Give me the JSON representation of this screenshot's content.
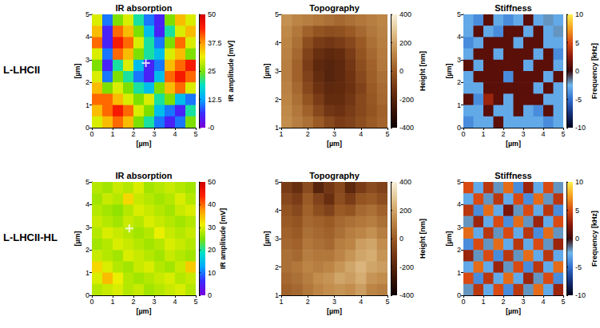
{
  "chart_data": [
    {
      "type": "heatmap",
      "row_label": "L-LHCII",
      "title": "IR absorption",
      "x_label": "[µm]",
      "y_label": "[µm]",
      "xlim": [
        0,
        5
      ],
      "ylim": [
        0,
        5
      ],
      "xticks": [
        0,
        1,
        2,
        3,
        4,
        5
      ],
      "yticks": [
        0,
        1,
        2,
        3,
        4,
        5
      ],
      "cells": [
        [
          30,
          10,
          25,
          30,
          20,
          10,
          5,
          25,
          35,
          30
        ],
        [
          35,
          5,
          40,
          35,
          25,
          15,
          5,
          20,
          30,
          35
        ],
        [
          40,
          5,
          45,
          40,
          30,
          20,
          10,
          25,
          40,
          30
        ],
        [
          30,
          10,
          40,
          35,
          25,
          20,
          15,
          30,
          35,
          25
        ],
        [
          25,
          5,
          20,
          30,
          15,
          5,
          10,
          35,
          40,
          45
        ],
        [
          30,
          10,
          25,
          20,
          10,
          5,
          15,
          40,
          45,
          40
        ],
        [
          35,
          25,
          30,
          25,
          20,
          15,
          25,
          35,
          40,
          30
        ],
        [
          40,
          40,
          35,
          30,
          25,
          30,
          20,
          25,
          15,
          10
        ],
        [
          35,
          40,
          45,
          40,
          30,
          25,
          15,
          10,
          5,
          20
        ],
        [
          30,
          35,
          40,
          35,
          25,
          20,
          10,
          5,
          10,
          25
        ]
      ],
      "colorbar": {
        "label": "IR amplitude [mV]",
        "range": [
          0,
          50
        ],
        "ticks": [
          {
            "value": 0,
            "label": "-0"
          },
          12.5,
          25,
          37.5,
          50
        ]
      },
      "markers": [
        {
          "x": 2.6,
          "y": 2.85
        }
      ],
      "marker": "cross"
    },
    {
      "type": "heatmap",
      "title": "Topography",
      "x_label": "[µm]",
      "y_label": "[µm]",
      "xlim": [
        1,
        5
      ],
      "ylim": [
        1,
        5
      ],
      "xticks": [
        1,
        2,
        3,
        4,
        5
      ],
      "yticks": [
        1,
        2,
        3,
        4,
        5
      ],
      "cells": [
        [
          150,
          120,
          100,
          80,
          60,
          40,
          60,
          80,
          100,
          120
        ],
        [
          130,
          80,
          20,
          -20,
          -40,
          -30,
          0,
          40,
          80,
          110
        ],
        [
          120,
          60,
          -40,
          -100,
          -120,
          -100,
          -60,
          0,
          60,
          100
        ],
        [
          110,
          40,
          -80,
          -150,
          -180,
          -160,
          -100,
          -20,
          40,
          90
        ],
        [
          100,
          20,
          -100,
          -180,
          -200,
          -180,
          -120,
          -40,
          20,
          80
        ],
        [
          100,
          20,
          -80,
          -160,
          -200,
          -180,
          -130,
          -60,
          10,
          60
        ],
        [
          110,
          40,
          -60,
          -140,
          -180,
          -170,
          -140,
          -80,
          0,
          50
        ],
        [
          120,
          60,
          -20,
          -100,
          -160,
          -160,
          -120,
          -60,
          -10,
          40
        ],
        [
          130,
          80,
          20,
          -60,
          -120,
          -140,
          -100,
          -60,
          -20,
          20
        ],
        [
          140,
          100,
          60,
          0,
          -60,
          -100,
          -80,
          -40,
          0,
          30
        ]
      ],
      "colorbar": {
        "label": "Height [nm]",
        "range": [
          -400,
          400
        ],
        "ticks": [
          -400,
          -200,
          0,
          200,
          400
        ]
      }
    },
    {
      "type": "heatmap",
      "title": "Stiffness",
      "x_label": "[µm]",
      "y_label": "[µm]",
      "xlim": [
        0,
        5
      ],
      "ylim": [
        0,
        5
      ],
      "xticks": [
        0,
        1,
        2,
        3,
        4,
        5
      ],
      "yticks": [
        0,
        1,
        2,
        3,
        4,
        5
      ],
      "cells": [
        [
          -3,
          -4,
          1,
          -3,
          -4,
          -3,
          1,
          -3,
          -2,
          -3
        ],
        [
          -3,
          1,
          -3,
          -4,
          1,
          1,
          -3,
          1,
          -3,
          -2
        ],
        [
          -4,
          -3,
          1,
          1,
          1,
          -3,
          1,
          1,
          -3,
          -3
        ],
        [
          -3,
          1,
          1,
          -3,
          1,
          1,
          1,
          -3,
          1,
          -4
        ],
        [
          1,
          -3,
          1,
          1,
          1,
          1,
          -3,
          1,
          1,
          -3
        ],
        [
          -3,
          1,
          1,
          1,
          -4,
          1,
          1,
          1,
          -3,
          1
        ],
        [
          -3,
          -3,
          1,
          1,
          1,
          1,
          1,
          -3,
          1,
          -3
        ],
        [
          1,
          -4,
          3,
          1,
          -3,
          1,
          1,
          1,
          -3,
          -3
        ],
        [
          -3,
          -3,
          1,
          -3,
          -3,
          1,
          -3,
          -4,
          1,
          -3
        ],
        [
          -4,
          -3,
          -3,
          1,
          -3,
          -3,
          -3,
          -3,
          -4,
          -3
        ]
      ],
      "colorbar": {
        "label": "Frequency [kHz]",
        "range": [
          -10,
          10
        ],
        "ticks": [
          -10,
          -5,
          0,
          5,
          10
        ]
      }
    },
    {
      "type": "heatmap",
      "row_label": "L-LHCII-HL",
      "title": "IR absorption",
      "x_label": "[µm]",
      "y_label": "[µm]",
      "xlim": [
        0,
        5
      ],
      "ylim": [
        0,
        5
      ],
      "xticks": [
        0,
        1,
        2,
        3,
        4,
        5
      ],
      "yticks": [
        0,
        1,
        2,
        3,
        4,
        5
      ],
      "cells": [
        [
          28,
          27,
          29,
          28,
          30,
          27,
          28,
          29,
          28,
          27
        ],
        [
          27,
          29,
          28,
          33,
          29,
          28,
          27,
          28,
          30,
          28
        ],
        [
          28,
          27,
          26,
          28,
          30,
          29,
          28,
          27,
          29,
          30
        ],
        [
          29,
          28,
          27,
          29,
          28,
          30,
          29,
          28,
          27,
          28
        ],
        [
          28,
          30,
          29,
          28,
          27,
          28,
          31,
          29,
          28,
          29
        ],
        [
          27,
          28,
          30,
          29,
          28,
          27,
          28,
          30,
          29,
          28
        ],
        [
          29,
          28,
          27,
          30,
          29,
          28,
          27,
          29,
          28,
          27
        ],
        [
          33,
          30,
          28,
          27,
          29,
          30,
          28,
          27,
          29,
          34
        ],
        [
          30,
          35,
          31,
          28,
          27,
          28,
          29,
          30,
          28,
          29
        ],
        [
          28,
          29,
          30,
          28,
          29,
          27,
          28,
          29,
          30,
          28
        ]
      ],
      "colorbar": {
        "label": "IR amplitude [mV]",
        "range": [
          0,
          50
        ],
        "ticks": [
          0,
          10,
          20,
          30,
          40,
          50
        ]
      },
      "markers": [
        {
          "x": 1.8,
          "y": 2.95
        }
      ],
      "marker": "cross"
    },
    {
      "type": "heatmap",
      "title": "Topography",
      "x_label": "[µm]",
      "y_label": "[µm]",
      "xlim": [
        1,
        5
      ],
      "ylim": [
        1,
        5
      ],
      "xticks": [
        1,
        2,
        3,
        4,
        5
      ],
      "yticks": [
        1,
        2,
        3,
        4,
        5
      ],
      "cells": [
        [
          -100,
          -150,
          -50,
          -200,
          -120,
          -60,
          -180,
          -100,
          -50,
          -80
        ],
        [
          -60,
          -100,
          0,
          -80,
          -150,
          -40,
          -100,
          -20,
          0,
          -40
        ],
        [
          -20,
          -60,
          20,
          -40,
          -80,
          0,
          -20,
          40,
          60,
          20
        ],
        [
          0,
          -20,
          40,
          20,
          0,
          40,
          60,
          80,
          100,
          60
        ],
        [
          20,
          0,
          60,
          40,
          20,
          60,
          100,
          120,
          150,
          100
        ],
        [
          40,
          20,
          80,
          60,
          40,
          100,
          120,
          180,
          200,
          140
        ],
        [
          60,
          40,
          100,
          80,
          80,
          120,
          160,
          200,
          220,
          160
        ],
        [
          60,
          80,
          120,
          100,
          120,
          160,
          200,
          240,
          200,
          180
        ],
        [
          40,
          60,
          100,
          140,
          160,
          200,
          180,
          220,
          160,
          140
        ],
        [
          20,
          40,
          80,
          120,
          140,
          160,
          140,
          180,
          120,
          100
        ]
      ],
      "colorbar": {
        "label": "Height [nm]",
        "range": [
          -400,
          400
        ],
        "ticks": [
          -400,
          -200,
          0,
          200,
          400
        ]
      }
    },
    {
      "type": "heatmap",
      "title": "Stiffness",
      "x_label": "[µm]",
      "y_label": "[µm]",
      "xlim": [
        0,
        5
      ],
      "ylim": [
        0,
        5
      ],
      "xticks": [
        0,
        1,
        2,
        3,
        4,
        5
      ],
      "yticks": [
        0,
        1,
        2,
        3,
        4,
        5
      ],
      "cells": [
        [
          5,
          -3,
          4,
          -2,
          6,
          -4,
          3,
          -3,
          5,
          -2
        ],
        [
          -3,
          5,
          -2,
          4,
          -3,
          5,
          -4,
          6,
          -2,
          4
        ],
        [
          4,
          -4,
          6,
          -3,
          2,
          -2,
          5,
          -3,
          4,
          -4
        ],
        [
          -2,
          3,
          -3,
          5,
          -4,
          6,
          -2,
          3,
          -3,
          5
        ],
        [
          6,
          -3,
          4,
          -2,
          5,
          -3,
          4,
          -4,
          6,
          -2
        ],
        [
          -4,
          5,
          -2,
          6,
          -3,
          4,
          -3,
          5,
          -2,
          3
        ],
        [
          3,
          -2,
          5,
          -4,
          4,
          -2,
          6,
          -3,
          4,
          -3
        ],
        [
          -3,
          6,
          -3,
          3,
          -2,
          5,
          -4,
          4,
          -3,
          6
        ],
        [
          5,
          -4,
          4,
          -3,
          6,
          -3,
          3,
          -2,
          5,
          -4
        ],
        [
          -2,
          4,
          -3,
          5,
          -4,
          4,
          -2,
          6,
          -3,
          3
        ]
      ],
      "colorbar": {
        "label": "Frequency [kHz]",
        "range": [
          -10,
          10
        ],
        "ticks": [
          -10,
          -5,
          0,
          5,
          10
        ]
      }
    }
  ]
}
